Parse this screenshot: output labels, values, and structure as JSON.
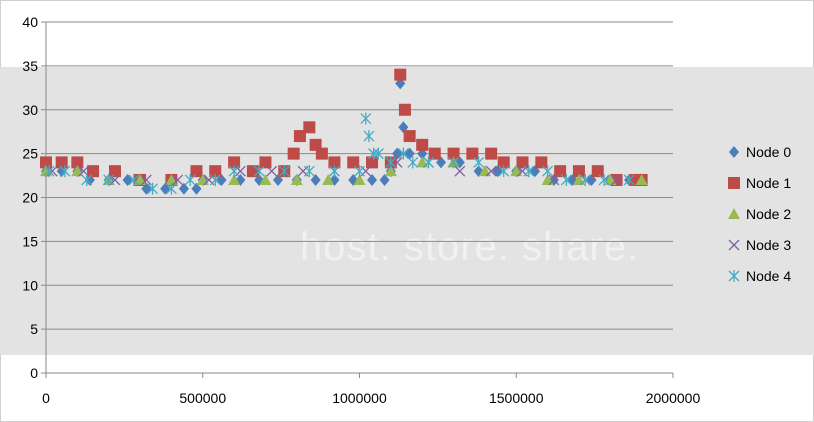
{
  "watermark": "host. store. share.",
  "chart_data": {
    "type": "scatter",
    "title": "",
    "xlabel": "",
    "ylabel": "",
    "xlim": [
      0,
      2000000
    ],
    "ylim": [
      0,
      40
    ],
    "x_ticks": [
      0,
      500000,
      1000000,
      1500000,
      2000000
    ],
    "y_ticks": [
      0,
      5,
      10,
      15,
      20,
      25,
      30,
      35,
      40
    ],
    "grid": "horizontal",
    "legend_position": "right",
    "series": [
      {
        "name": "Node 0",
        "marker": "diamond",
        "color": "#4a7ebb",
        "points": [
          [
            0,
            23
          ],
          [
            50000,
            23
          ],
          [
            100000,
            23
          ],
          [
            140000,
            22
          ],
          [
            200000,
            22
          ],
          [
            260000,
            22
          ],
          [
            320000,
            21
          ],
          [
            380000,
            21
          ],
          [
            440000,
            21
          ],
          [
            480000,
            21
          ],
          [
            500000,
            22
          ],
          [
            560000,
            22
          ],
          [
            620000,
            22
          ],
          [
            680000,
            22
          ],
          [
            740000,
            22
          ],
          [
            800000,
            22
          ],
          [
            860000,
            22
          ],
          [
            920000,
            22
          ],
          [
            980000,
            22
          ],
          [
            1040000,
            22
          ],
          [
            1080000,
            22
          ],
          [
            1100000,
            23
          ],
          [
            1120000,
            25
          ],
          [
            1130000,
            33
          ],
          [
            1140000,
            28
          ],
          [
            1160000,
            25
          ],
          [
            1200000,
            25
          ],
          [
            1260000,
            24
          ],
          [
            1320000,
            24
          ],
          [
            1380000,
            23
          ],
          [
            1440000,
            23
          ],
          [
            1500000,
            23
          ],
          [
            1560000,
            23
          ],
          [
            1620000,
            22
          ],
          [
            1680000,
            22
          ],
          [
            1740000,
            22
          ],
          [
            1800000,
            22
          ],
          [
            1860000,
            22
          ],
          [
            1900000,
            22
          ]
        ]
      },
      {
        "name": "Node 1",
        "marker": "square",
        "color": "#be4b48",
        "points": [
          [
            0,
            24
          ],
          [
            50000,
            24
          ],
          [
            100000,
            24
          ],
          [
            150000,
            23
          ],
          [
            220000,
            23
          ],
          [
            300000,
            22
          ],
          [
            400000,
            22
          ],
          [
            480000,
            23
          ],
          [
            540000,
            23
          ],
          [
            600000,
            24
          ],
          [
            660000,
            23
          ],
          [
            700000,
            24
          ],
          [
            760000,
            23
          ],
          [
            790000,
            25
          ],
          [
            810000,
            27
          ],
          [
            840000,
            28
          ],
          [
            860000,
            26
          ],
          [
            880000,
            25
          ],
          [
            920000,
            24
          ],
          [
            980000,
            24
          ],
          [
            1040000,
            24
          ],
          [
            1100000,
            24
          ],
          [
            1130000,
            34
          ],
          [
            1145000,
            30
          ],
          [
            1160000,
            27
          ],
          [
            1200000,
            26
          ],
          [
            1240000,
            25
          ],
          [
            1300000,
            25
          ],
          [
            1360000,
            25
          ],
          [
            1420000,
            25
          ],
          [
            1460000,
            24
          ],
          [
            1520000,
            24
          ],
          [
            1580000,
            24
          ],
          [
            1640000,
            23
          ],
          [
            1700000,
            23
          ],
          [
            1760000,
            23
          ],
          [
            1820000,
            22
          ],
          [
            1880000,
            22
          ],
          [
            1900000,
            22
          ]
        ]
      },
      {
        "name": "Node 2",
        "marker": "triangle",
        "color": "#98b954",
        "points": [
          [
            0,
            23
          ],
          [
            100000,
            23
          ],
          [
            200000,
            22
          ],
          [
            300000,
            22
          ],
          [
            400000,
            22
          ],
          [
            500000,
            22
          ],
          [
            600000,
            22
          ],
          [
            700000,
            22
          ],
          [
            800000,
            22
          ],
          [
            900000,
            22
          ],
          [
            1000000,
            22
          ],
          [
            1100000,
            23
          ],
          [
            1200000,
            24
          ],
          [
            1300000,
            24
          ],
          [
            1400000,
            23
          ],
          [
            1500000,
            23
          ],
          [
            1600000,
            22
          ],
          [
            1700000,
            22
          ],
          [
            1800000,
            22
          ],
          [
            1900000,
            22
          ]
        ]
      },
      {
        "name": "Node 3",
        "marker": "x",
        "color": "#7d60a0",
        "points": [
          [
            20000,
            23
          ],
          [
            120000,
            23
          ],
          [
            220000,
            22
          ],
          [
            320000,
            22
          ],
          [
            420000,
            22
          ],
          [
            520000,
            22
          ],
          [
            620000,
            23
          ],
          [
            720000,
            23
          ],
          [
            820000,
            23
          ],
          [
            920000,
            23
          ],
          [
            1020000,
            23
          ],
          [
            1120000,
            24
          ],
          [
            1220000,
            24
          ],
          [
            1320000,
            23
          ],
          [
            1420000,
            23
          ],
          [
            1520000,
            23
          ],
          [
            1620000,
            22
          ],
          [
            1720000,
            22
          ],
          [
            1820000,
            22
          ]
        ]
      },
      {
        "name": "Node 4",
        "marker": "asterisk",
        "color": "#46aac5",
        "points": [
          [
            10000,
            23
          ],
          [
            60000,
            23
          ],
          [
            130000,
            22
          ],
          [
            200000,
            22
          ],
          [
            280000,
            22
          ],
          [
            340000,
            21
          ],
          [
            400000,
            21
          ],
          [
            460000,
            22
          ],
          [
            540000,
            22
          ],
          [
            600000,
            23
          ],
          [
            680000,
            23
          ],
          [
            760000,
            23
          ],
          [
            840000,
            23
          ],
          [
            920000,
            23
          ],
          [
            1000000,
            23
          ],
          [
            1020000,
            29
          ],
          [
            1030000,
            27
          ],
          [
            1045000,
            25
          ],
          [
            1060000,
            25
          ],
          [
            1100000,
            24
          ],
          [
            1140000,
            25
          ],
          [
            1170000,
            24
          ],
          [
            1220000,
            24
          ],
          [
            1300000,
            24
          ],
          [
            1380000,
            24
          ],
          [
            1460000,
            23
          ],
          [
            1540000,
            23
          ],
          [
            1600000,
            23
          ],
          [
            1660000,
            22
          ],
          [
            1720000,
            22
          ],
          [
            1780000,
            22
          ],
          [
            1860000,
            22
          ]
        ]
      }
    ]
  }
}
